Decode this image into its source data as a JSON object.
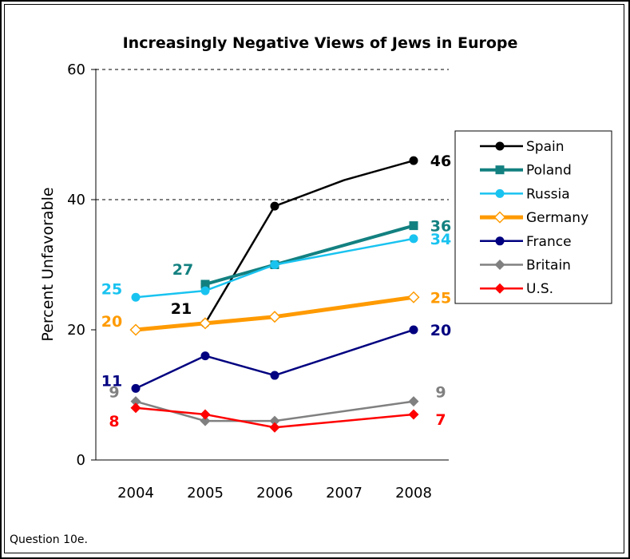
{
  "chart_data": {
    "type": "line",
    "title": "Increasingly Negative Views of Jews in Europe",
    "xlabel": "",
    "ylabel": "Percent Unfavorable",
    "x": [
      2004,
      2005,
      2006,
      2007,
      2008
    ],
    "ylim": [
      0,
      60
    ],
    "yticks": [
      0,
      20,
      40,
      60
    ],
    "grid": "dashed horizontal at 40 and 60",
    "legend_position": "right",
    "series": [
      {
        "name": "Spain",
        "color": "#000000",
        "marker": "circle",
        "values": [
          null,
          21,
          39,
          43,
          46
        ],
        "labels": [
          {
            "x": 2005,
            "text": "21"
          },
          {
            "x": 2008,
            "text": "46"
          }
        ]
      },
      {
        "name": "Poland",
        "color": "#138080",
        "marker": "square",
        "values": [
          null,
          27,
          30,
          33,
          36
        ],
        "labels": [
          {
            "x": 2005,
            "text": "27"
          },
          {
            "x": 2008,
            "text": "36"
          }
        ]
      },
      {
        "name": "Russia",
        "color": "#19c3f0",
        "marker": "circle",
        "values": [
          25,
          26,
          30,
          32,
          34
        ],
        "labels": [
          {
            "x": 2004,
            "text": "25"
          },
          {
            "x": 2008,
            "text": "34"
          }
        ]
      },
      {
        "name": "Germany",
        "color": "#ff9a00",
        "marker": "diamond-open",
        "values": [
          20,
          21,
          22,
          23.5,
          25
        ],
        "labels": [
          {
            "x": 2004,
            "text": "20"
          },
          {
            "x": 2008,
            "text": "25"
          }
        ]
      },
      {
        "name": "France",
        "color": "#000080",
        "marker": "circle",
        "values": [
          11,
          16,
          13,
          16.5,
          20
        ],
        "labels": [
          {
            "x": 2004,
            "text": "11"
          },
          {
            "x": 2008,
            "text": "20"
          }
        ]
      },
      {
        "name": "Britain",
        "color": "#808080",
        "marker": "diamond",
        "values": [
          9,
          6,
          6,
          7.5,
          9
        ],
        "labels": [
          {
            "x": 2004,
            "text": "9"
          },
          {
            "x": 2008,
            "text": "9"
          }
        ]
      },
      {
        "name": "U.S.",
        "color": "#ff0000",
        "marker": "diamond",
        "values": [
          8,
          7,
          5,
          6,
          7
        ],
        "labels": [
          {
            "x": 2004,
            "text": "8"
          },
          {
            "x": 2008,
            "text": "7"
          }
        ]
      }
    ]
  },
  "footnote": "Question 10e."
}
